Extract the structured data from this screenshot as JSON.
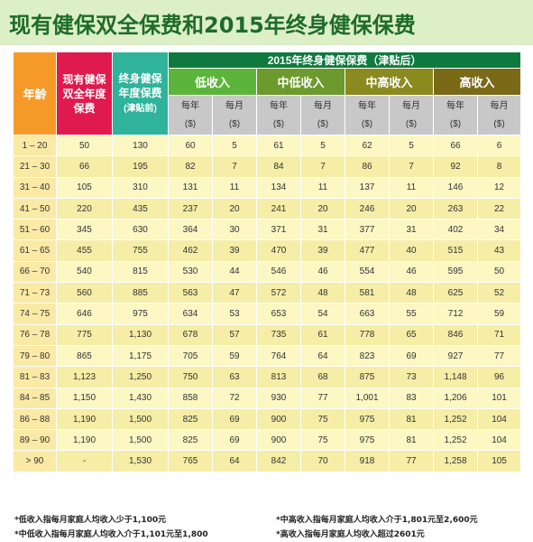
{
  "title": "现有健保双全保费和2015年终身健保保费",
  "headers": {
    "age": "年龄",
    "current_line1": "现有健保",
    "current_line2": "双全年度",
    "current_line3": "保费",
    "lifetime_line1": "终身健保",
    "lifetime_line2": "年度保费",
    "lifetime_line3": "(津贴前)",
    "premium_2015": "2015年终身健保保费（津贴后）",
    "groups": [
      "低收入",
      "中低收入",
      "中高收入",
      "高收入"
    ],
    "per_year_line1": "每年",
    "per_month_line1": "每月",
    "unit": "($)"
  },
  "rows": [
    {
      "age": "1 – 20",
      "current": "50",
      "lifetime": "130",
      "v": [
        "60",
        "5",
        "61",
        "5",
        "62",
        "5",
        "66",
        "6"
      ]
    },
    {
      "age": "21 – 30",
      "current": "66",
      "lifetime": "195",
      "v": [
        "82",
        "7",
        "84",
        "7",
        "86",
        "7",
        "92",
        "8"
      ]
    },
    {
      "age": "31 – 40",
      "current": "105",
      "lifetime": "310",
      "v": [
        "131",
        "11",
        "134",
        "11",
        "137",
        "11",
        "146",
        "12"
      ]
    },
    {
      "age": "41 – 50",
      "current": "220",
      "lifetime": "435",
      "v": [
        "237",
        "20",
        "241",
        "20",
        "246",
        "20",
        "263",
        "22"
      ]
    },
    {
      "age": "51 – 60",
      "current": "345",
      "lifetime": "630",
      "v": [
        "364",
        "30",
        "371",
        "31",
        "377",
        "31",
        "402",
        "34"
      ]
    },
    {
      "age": "61 – 65",
      "current": "455",
      "lifetime": "755",
      "v": [
        "462",
        "39",
        "470",
        "39",
        "477",
        "40",
        "515",
        "43"
      ]
    },
    {
      "age": "66 – 70",
      "current": "540",
      "lifetime": "815",
      "v": [
        "530",
        "44",
        "546",
        "46",
        "554",
        "46",
        "595",
        "50"
      ]
    },
    {
      "age": "71 – 73",
      "current": "560",
      "lifetime": "885",
      "v": [
        "563",
        "47",
        "572",
        "48",
        "581",
        "48",
        "625",
        "52"
      ]
    },
    {
      "age": "74 – 75",
      "current": "646",
      "lifetime": "975",
      "v": [
        "634",
        "53",
        "653",
        "54",
        "663",
        "55",
        "712",
        "59"
      ]
    },
    {
      "age": "76 – 78",
      "current": "775",
      "lifetime": "1,130",
      "v": [
        "678",
        "57",
        "735",
        "61",
        "778",
        "65",
        "846",
        "71"
      ]
    },
    {
      "age": "79 – 80",
      "current": "865",
      "lifetime": "1,175",
      "v": [
        "705",
        "59",
        "764",
        "64",
        "823",
        "69",
        "927",
        "77"
      ]
    },
    {
      "age": "81 – 83",
      "current": "1,123",
      "lifetime": "1,250",
      "v": [
        "750",
        "63",
        "813",
        "68",
        "875",
        "73",
        "1,148",
        "96"
      ]
    },
    {
      "age": "84 – 85",
      "current": "1,150",
      "lifetime": "1,430",
      "v": [
        "858",
        "72",
        "930",
        "77",
        "1,001",
        "83",
        "1,206",
        "101"
      ]
    },
    {
      "age": "86 – 88",
      "current": "1,190",
      "lifetime": "1,500",
      "v": [
        "825",
        "69",
        "900",
        "75",
        "975",
        "81",
        "1,252",
        "104"
      ]
    },
    {
      "age": "89 – 90",
      "current": "1,190",
      "lifetime": "1,500",
      "v": [
        "825",
        "69",
        "900",
        "75",
        "975",
        "81",
        "1,252",
        "104"
      ]
    },
    {
      "age": "> 90",
      "current": "-",
      "lifetime": "1,530",
      "v": [
        "765",
        "64",
        "842",
        "70",
        "918",
        "77",
        "1,258",
        "105"
      ]
    }
  ],
  "footnotes": {
    "low": "*低收入指每月家庭人均收入少于1,100元",
    "midlow": "*中低收入指每月家庭人均收入介于1,101元至1,800",
    "midhigh": "*中高收入指每月家庭人均收入介于1,801元至2,600元",
    "high": "*高收入指每月家庭人均收入超过2601元"
  },
  "colors": {
    "title": "#1e6b2a",
    "age_header": "#f59a28",
    "current_header": "#e0194e",
    "lifetime_header": "#2fb39a",
    "premium_header": "#0e7a3f",
    "low": "#5bb53a",
    "midlow": "#6d9a2d",
    "midhigh": "#8b8a1f",
    "high": "#7a6a18",
    "row_light": "#fdf7c4",
    "row_dark": "#f6eda6"
  }
}
